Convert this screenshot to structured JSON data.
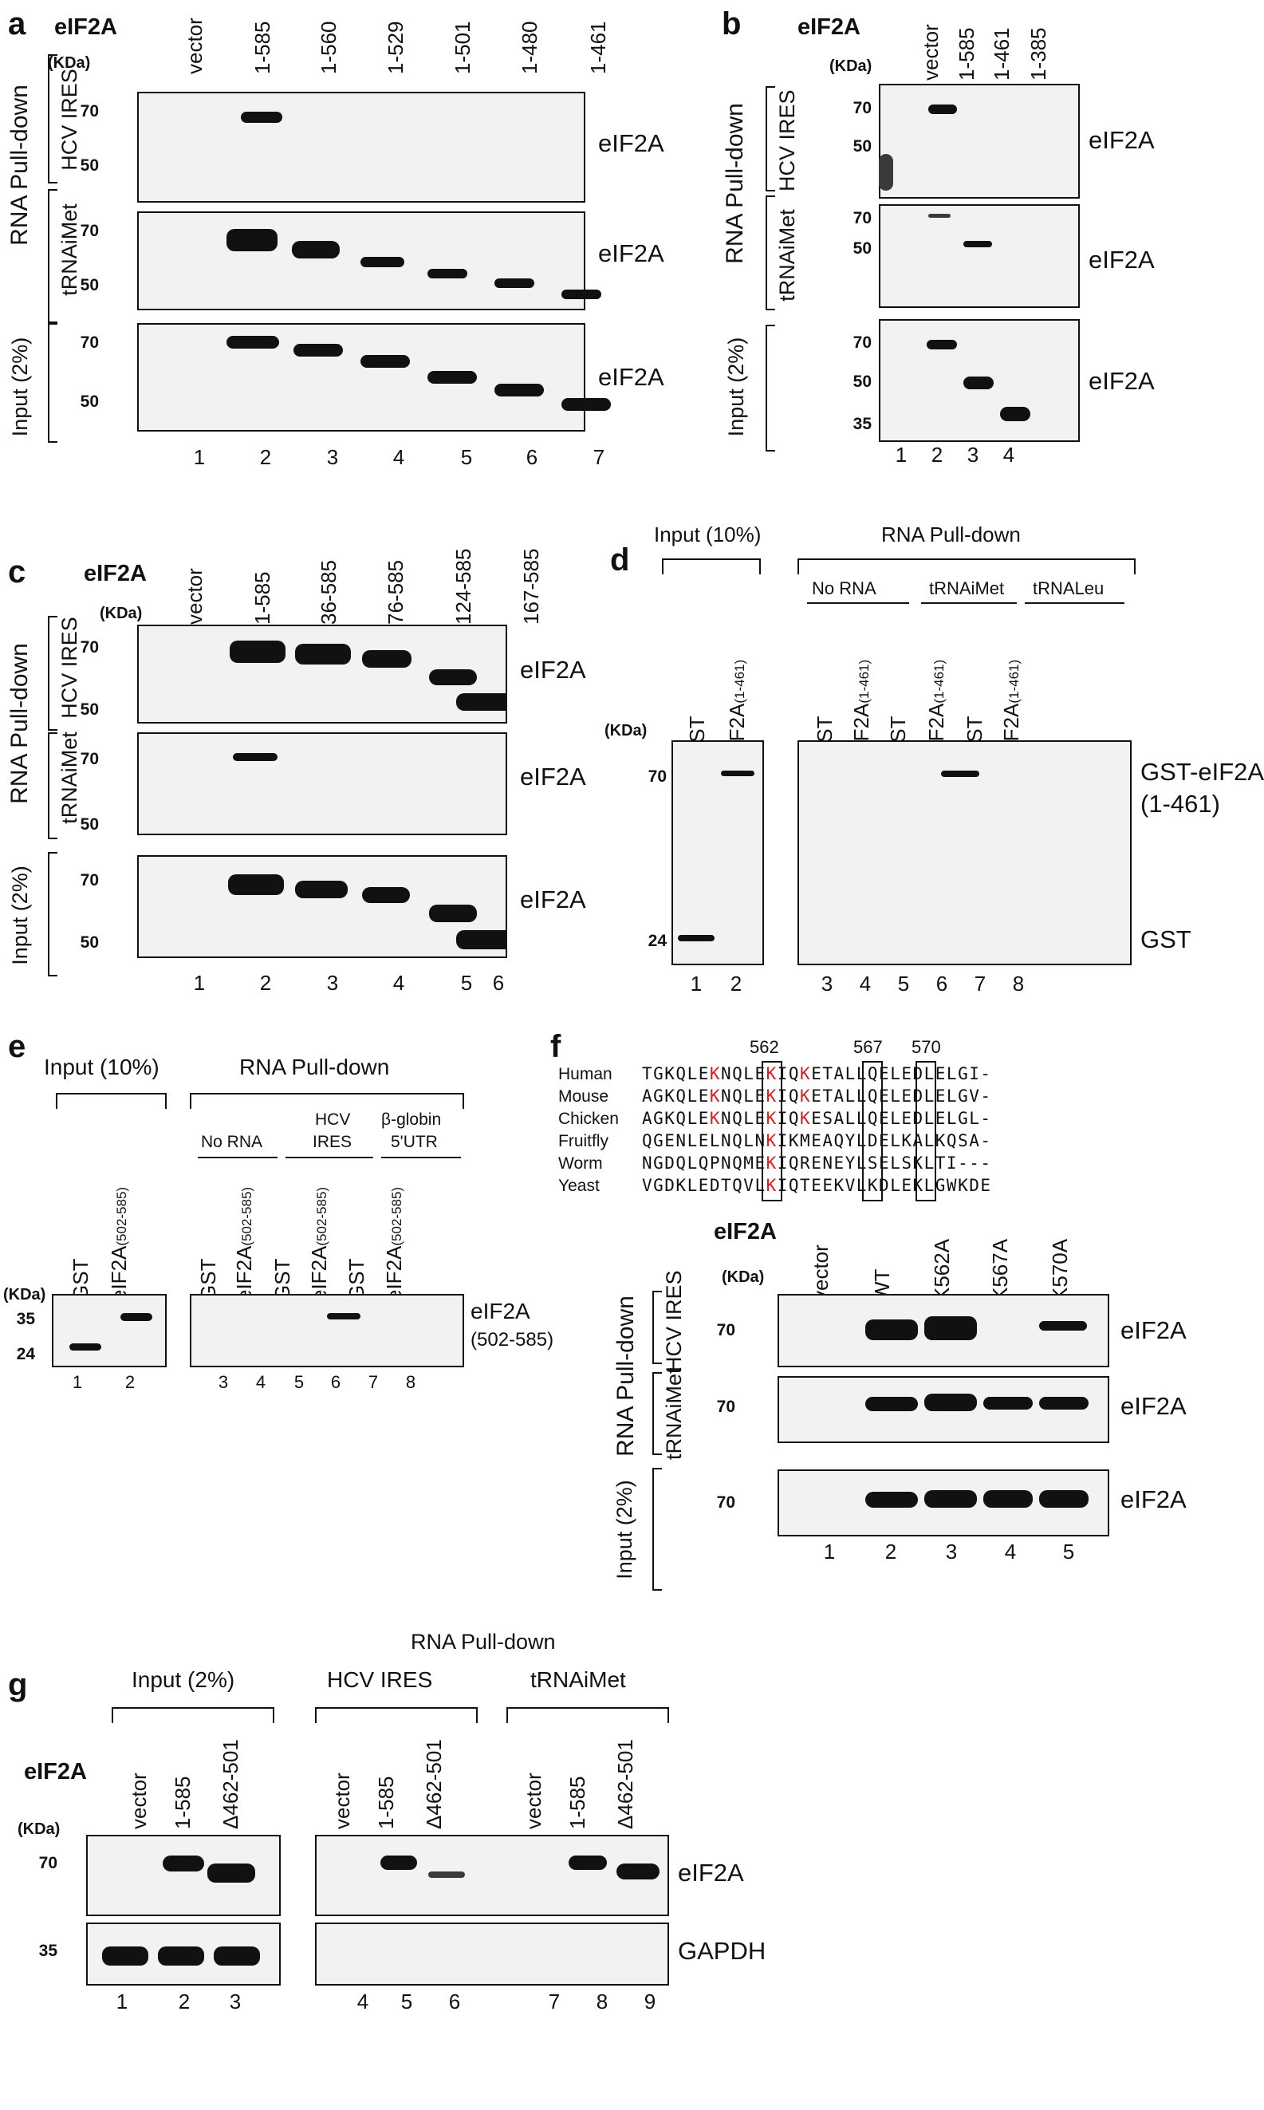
{
  "panel_a": {
    "label": "a",
    "gene": "eIF2A",
    "kda": "(KDa)",
    "columns": [
      "vector",
      "1-585",
      "1-560",
      "1-529",
      "1-501",
      "1-480",
      "1-461"
    ],
    "row_group": "RNA Pull-down",
    "rows": [
      {
        "side": "HCV IRES",
        "mw": [
          "70",
          "50"
        ],
        "target": "eIF2A"
      },
      {
        "side": "tRNAiMet",
        "mw": [
          "70",
          "50"
        ],
        "target": "eIF2A"
      },
      {
        "side": "Input (2%)",
        "mw": [
          "70",
          "50"
        ],
        "target": "eIF2A"
      }
    ],
    "lanes": [
      "1",
      "2",
      "3",
      "4",
      "5",
      "6",
      "7"
    ]
  },
  "panel_b": {
    "label": "b",
    "gene": "eIF2A",
    "kda": "(KDa)",
    "columns": [
      "vector",
      "1-585",
      "1-461",
      "1-385"
    ],
    "row_group": "RNA Pull-down",
    "rows": [
      {
        "side": "HCV IRES",
        "mw": [
          "70",
          "50"
        ],
        "target": "eIF2A"
      },
      {
        "side": "tRNAiMet",
        "mw": [
          "70",
          "50"
        ],
        "target": "eIF2A"
      },
      {
        "side": "Input (2%)",
        "mw": [
          "70",
          "50",
          "35"
        ],
        "target": "eIF2A"
      }
    ],
    "lanes": [
      "1",
      "2",
      "3",
      "4"
    ]
  },
  "panel_c": {
    "label": "c",
    "gene": "eIF2A",
    "kda": "(KDa)",
    "columns": [
      "vector",
      "1-585",
      "36-585",
      "76-585",
      "124-585",
      "167-585"
    ],
    "row_group": "RNA Pull-down",
    "rows": [
      {
        "side": "HCV IRES",
        "mw": [
          "70",
          "50"
        ],
        "target": "eIF2A"
      },
      {
        "side": "tRNAiMet",
        "mw": [
          "70",
          "50"
        ],
        "target": "eIF2A"
      },
      {
        "side": "Input (2%)",
        "mw": [
          "70",
          "50"
        ],
        "target": "eIF2A"
      }
    ],
    "lanes": [
      "1",
      "2",
      "3",
      "4",
      "5",
      "6"
    ]
  },
  "panel_d": {
    "label": "d",
    "kda": "(KDa)",
    "input_label": "Input (10%)",
    "pulldown_label": "RNA Pull-down",
    "groups": [
      "No RNA",
      "tRNAiMet",
      "tRNALeu"
    ],
    "col_gst": "GST",
    "col_eif": "eIF2A",
    "col_eif_sub": "(1-461)",
    "mw": [
      "70",
      "24"
    ],
    "targets": [
      "GST-eIF2A",
      "(1-461)",
      "GST"
    ],
    "lanes": [
      "1",
      "2",
      "3",
      "4",
      "5",
      "6",
      "7",
      "8"
    ]
  },
  "panel_e": {
    "label": "e",
    "kda": "(KDa)",
    "input_label": "Input (10%)",
    "pulldown_label": "RNA Pull-down",
    "groups": [
      "No RNA",
      "HCV",
      "IRES",
      "β-globin",
      "5'UTR"
    ],
    "col_gst": "GST",
    "col_eif": "eIF2A",
    "col_eif_sub": "(502-585)",
    "mw": [
      "35",
      "24"
    ],
    "targets": [
      "eIF2A",
      "(502-585)"
    ],
    "lanes": [
      "1",
      "2",
      "3",
      "4",
      "5",
      "6",
      "7",
      "8"
    ]
  },
  "panel_f": {
    "label": "f",
    "gene": "eIF2A",
    "kda": "(KDa)",
    "positions": [
      "562",
      "567",
      "570"
    ],
    "alignment": [
      {
        "species": "Human",
        "a": "TGKQLE",
        "k1": "K",
        "b": "NQLE",
        "k2": "K",
        "c": "IQ",
        "k3": "K",
        "d": "ETALLQELEDLELGI-"
      },
      {
        "species": "Mouse",
        "a": "AGKQLE",
        "k1": "K",
        "b": "NQLE",
        "k2": "K",
        "c": "IQ",
        "k3": "K",
        "d": "ETALLQELEDLELGV-"
      },
      {
        "species": "Chicken",
        "a": "AGKQLE",
        "k1": "K",
        "b": "NQLE",
        "k2": "K",
        "c": "IQ",
        "k3": "K",
        "d": "ESALLQELEDLELGL-"
      },
      {
        "species": "Fruitfly",
        "a": "QGENLE",
        "k1": "L",
        "b": "NQLN",
        "k2": "K",
        "c": "IK",
        "k3": "M",
        "d": "EAQYLDELKALKQSA-"
      },
      {
        "species": "Worm",
        "a": "NGDQLQ",
        "k1": "P",
        "b": "NQME",
        "k2": "K",
        "c": "IQ",
        "k3": "R",
        "d": "ENEYLSELSKLTI---"
      },
      {
        "species": "Yeast",
        "a": "VGDKLE",
        "k1": "D",
        "b": "TQVL",
        "k2": "K",
        "c": "IQ",
        "k3": "T",
        "d": "EEKVLKDLEKLGWKDE"
      }
    ],
    "columns": [
      "vector",
      "WT",
      "K562A",
      "K567A",
      "K570A"
    ],
    "row_group": "RNA Pull-down",
    "rows": [
      {
        "side": "HCV IRES",
        "mw": [
          "70"
        ],
        "target": "eIF2A"
      },
      {
        "side": "tRNAiMet",
        "mw": [
          "70"
        ],
        "target": "eIF2A"
      },
      {
        "side": "Input (2%)",
        "mw": [
          "70"
        ],
        "target": "eIF2A"
      }
    ],
    "lanes": [
      "1",
      "2",
      "3",
      "4",
      "5"
    ]
  },
  "panel_g": {
    "label": "g",
    "gene": "eIF2A",
    "kda": "(KDa)",
    "top_label": "RNA Pull-down",
    "groups": [
      "Input (2%)",
      "HCV IRES",
      "tRNAiMet"
    ],
    "columns": [
      "vector",
      "1-585",
      "Δ462-501"
    ],
    "mw": [
      "70",
      "35"
    ],
    "targets": [
      "eIF2A",
      "GAPDH"
    ],
    "lanes": [
      "1",
      "2",
      "3",
      "4",
      "5",
      "6",
      "7",
      "8",
      "9"
    ]
  }
}
